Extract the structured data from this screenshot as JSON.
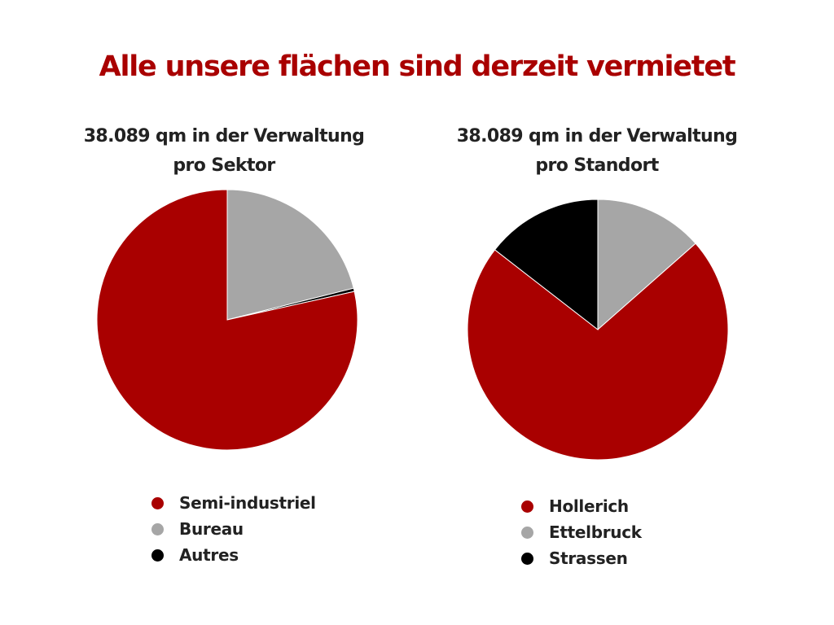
{
  "page_title": "Alle unsere flächen sind derzeit vermietet",
  "chart_data": [
    {
      "type": "pie",
      "title": "38.089 qm in der Verwaltung pro Sektor",
      "title_lines": [
        "38.089 qm in der Verwaltung",
        "pro Sektor"
      ],
      "slices": [
        {
          "label": "Semi-industriel",
          "value": 78.5,
          "color": "#a90000"
        },
        {
          "label": "Bureau",
          "value": 21.1,
          "color": "#a6a6a6"
        },
        {
          "label": "Autres",
          "value": 0.4,
          "color": "#000000"
        }
      ]
    },
    {
      "type": "pie",
      "title": "38.089 qm in der Verwaltung pro Standort",
      "title_lines": [
        "38.089 qm in der Verwaltung",
        "pro Standort"
      ],
      "slices": [
        {
          "label": "Hollerich",
          "value": 72.0,
          "color": "#a90000"
        },
        {
          "label": "Ettelbruck",
          "value": 13.5,
          "color": "#a6a6a6"
        },
        {
          "label": "Strassen",
          "value": 14.5,
          "color": "#000000"
        }
      ]
    }
  ]
}
